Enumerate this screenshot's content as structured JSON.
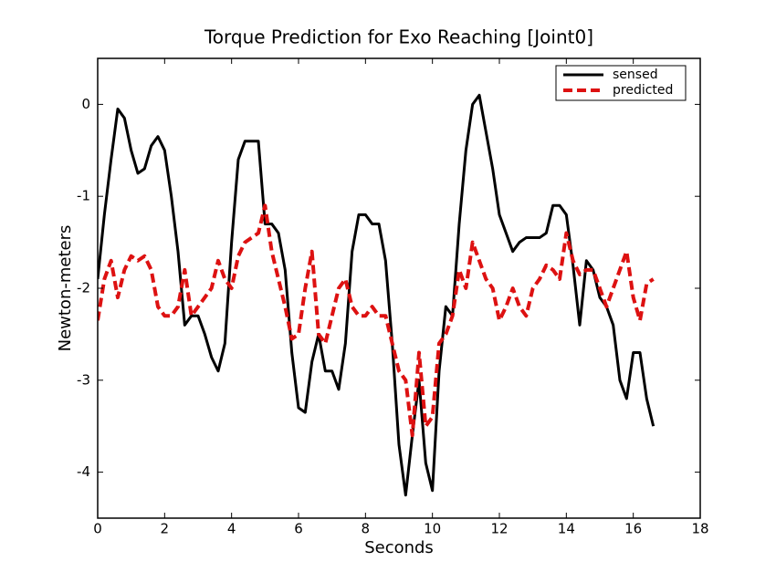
{
  "chart_data": {
    "type": "line",
    "title": "Torque Prediction for Exo Reaching [Joint0]",
    "x_label": "Seconds",
    "y_label": "Newton-meters",
    "xlim": [
      0,
      18
    ],
    "xticks": [
      0,
      2,
      4,
      6,
      8,
      10,
      12,
      14,
      16,
      18
    ],
    "ylim": [
      -4.5,
      0.5
    ],
    "yticks": [
      0,
      -1,
      -2,
      -3,
      -4
    ],
    "legend": "upper right",
    "x": [
      0,
      0.2,
      0.4,
      0.6,
      0.8,
      1.0,
      1.2,
      1.4,
      1.6,
      1.8,
      2.0,
      2.2,
      2.4,
      2.6,
      2.8,
      3.0,
      3.2,
      3.4,
      3.6,
      3.8,
      4.0,
      4.2,
      4.4,
      4.6,
      4.8,
      5.0,
      5.2,
      5.4,
      5.6,
      5.8,
      6.0,
      6.2,
      6.4,
      6.6,
      6.8,
      7.0,
      7.2,
      7.4,
      7.6,
      7.8,
      8.0,
      8.2,
      8.4,
      8.6,
      8.8,
      9.0,
      9.2,
      9.4,
      9.6,
      9.8,
      10.0,
      10.2,
      10.4,
      10.6,
      10.8,
      11.0,
      11.2,
      11.4,
      11.6,
      11.8,
      12.0,
      12.2,
      12.4,
      12.6,
      12.8,
      13.0,
      13.2,
      13.4,
      13.6,
      13.8,
      14.0,
      14.2,
      14.4,
      14.6,
      14.8,
      15.0,
      15.2,
      15.4,
      15.6,
      15.8,
      16.0,
      16.2,
      16.4,
      16.6
    ],
    "series": [
      {
        "name": "sensed",
        "color": "#000000",
        "linestyle": "solid",
        "values": [
          -1.9,
          -1.2,
          -0.6,
          -0.05,
          -0.15,
          -0.5,
          -0.75,
          -0.7,
          -0.45,
          -0.35,
          -0.5,
          -1.0,
          -1.6,
          -2.4,
          -2.3,
          -2.3,
          -2.5,
          -2.75,
          -2.9,
          -2.6,
          -1.5,
          -0.6,
          -0.4,
          -0.4,
          -0.4,
          -1.3,
          -1.3,
          -1.4,
          -1.8,
          -2.7,
          -3.3,
          -3.35,
          -2.8,
          -2.5,
          -2.9,
          -2.9,
          -3.1,
          -2.6,
          -1.6,
          -1.2,
          -1.2,
          -1.3,
          -1.3,
          -1.7,
          -2.6,
          -3.7,
          -4.25,
          -3.6,
          -3.0,
          -3.9,
          -4.2,
          -2.9,
          -2.2,
          -2.3,
          -1.3,
          -0.5,
          0.0,
          0.1,
          -0.3,
          -0.7,
          -1.2,
          -1.4,
          -1.6,
          -1.5,
          -1.45,
          -1.45,
          -1.45,
          -1.4,
          -1.1,
          -1.1,
          -1.2,
          -1.75,
          -2.4,
          -1.7,
          -1.8,
          -2.1,
          -2.2,
          -2.4,
          -3.0,
          -3.2,
          -2.7,
          -2.7,
          -3.2,
          -3.5
        ]
      },
      {
        "name": "predicted",
        "color": "#dd1111",
        "linestyle": "dashed",
        "values": [
          -2.35,
          -1.9,
          -1.7,
          -2.1,
          -1.8,
          -1.65,
          -1.7,
          -1.65,
          -1.8,
          -2.2,
          -2.3,
          -2.3,
          -2.2,
          -1.8,
          -2.3,
          -2.2,
          -2.1,
          -2.0,
          -1.7,
          -1.9,
          -2.0,
          -1.65,
          -1.5,
          -1.45,
          -1.4,
          -1.1,
          -1.6,
          -1.9,
          -2.2,
          -2.55,
          -2.5,
          -2.0,
          -1.6,
          -2.5,
          -2.6,
          -2.3,
          -2.0,
          -1.9,
          -2.2,
          -2.3,
          -2.3,
          -2.2,
          -2.3,
          -2.3,
          -2.6,
          -2.9,
          -3.0,
          -3.6,
          -2.7,
          -3.5,
          -3.4,
          -2.6,
          -2.5,
          -2.3,
          -1.8,
          -2.0,
          -1.5,
          -1.7,
          -1.9,
          -2.0,
          -2.35,
          -2.2,
          -2.0,
          -2.2,
          -2.3,
          -2.0,
          -1.9,
          -1.75,
          -1.8,
          -1.9,
          -1.4,
          -1.7,
          -1.85,
          -1.8,
          -1.8,
          -2.0,
          -2.2,
          -2.0,
          -1.8,
          -1.6,
          -2.1,
          -2.35,
          -1.95,
          -1.9
        ]
      }
    ]
  }
}
